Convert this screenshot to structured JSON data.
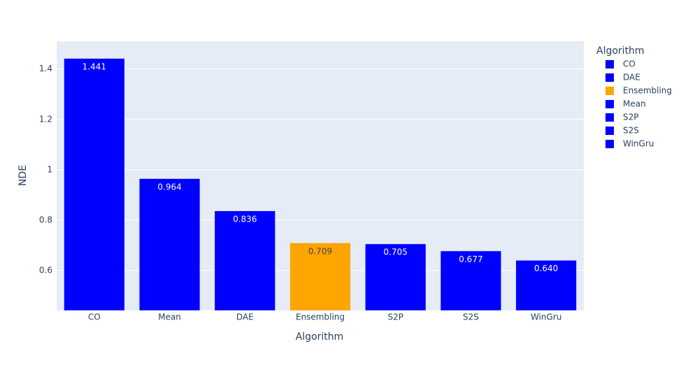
{
  "chart_data": {
    "type": "bar",
    "x_label": "Algorithm",
    "y_label": "NDE",
    "categories": [
      "CO",
      "Mean",
      "DAE",
      "Ensembling",
      "S2P",
      "S2S",
      "WinGru"
    ],
    "values": [
      1.441,
      0.964,
      0.836,
      0.709,
      0.705,
      0.677,
      0.64
    ],
    "value_labels": [
      "1.441",
      "0.964",
      "0.836",
      "0.709",
      "0.705",
      "0.677",
      "0.640"
    ],
    "colors": [
      "#0000ff",
      "#0000ff",
      "#0000ff",
      "#ffa500",
      "#0000ff",
      "#0000ff",
      "#0000ff"
    ],
    "ylim": [
      0.442,
      1.51
    ],
    "yticks": [
      0.6,
      0.8,
      1,
      1.2,
      1.4
    ],
    "grid": true,
    "legend": {
      "title": "Algorithm",
      "position": "right",
      "items": [
        {
          "name": "CO",
          "color": "#0000ff"
        },
        {
          "name": "DAE",
          "color": "#0000ff"
        },
        {
          "name": "Ensembling",
          "color": "#ffa500"
        },
        {
          "name": "Mean",
          "color": "#0000ff"
        },
        {
          "name": "S2P",
          "color": "#0000ff"
        },
        {
          "name": "S2S",
          "color": "#0000ff"
        },
        {
          "name": "WinGru",
          "color": "#0000ff"
        }
      ]
    }
  }
}
